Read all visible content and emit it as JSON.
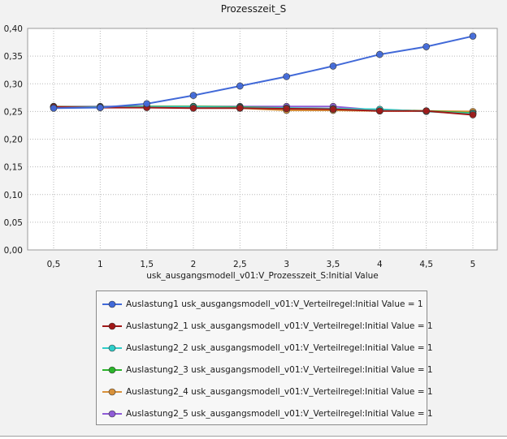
{
  "chart_data": {
    "type": "line",
    "title": "Prozesszeit_S",
    "xlabel": "usk_ausgangsmodell_v01:V_Prozesszeit_S:Initial Value",
    "ylabel": "",
    "x": [
      0.5,
      1,
      1.5,
      2,
      2.5,
      3,
      3.5,
      4,
      4.5,
      5
    ],
    "x_tick_labels": [
      "0,5",
      "1",
      "1,5",
      "2",
      "2,5",
      "3",
      "3,5",
      "4",
      "4,5",
      "5"
    ],
    "y_tick_labels": [
      "0,00",
      "0,05",
      "0,10",
      "0,15",
      "0,20",
      "0,25",
      "0,30",
      "0,35",
      "0,40"
    ],
    "ylim": [
      0,
      0.4
    ],
    "grid": true,
    "legend_position": "bottom",
    "series": [
      {
        "name": "Auslastung1 usk_ausgangsmodell_v01:V_Verteilregel:Initial Value = 1",
        "color": "#4169d8",
        "values": [
          0.256,
          0.257,
          0.264,
          0.279,
          0.296,
          0.313,
          0.332,
          0.353,
          0.367,
          0.386
        ]
      },
      {
        "name": "Auslastung2_1 usk_ausgangsmodell_v01:V_Verteilregel:Initial Value = 1",
        "color": "#a01818",
        "values": [
          0.258,
          0.257,
          0.257,
          0.256,
          0.256,
          0.255,
          0.254,
          0.251,
          0.251,
          0.244
        ]
      },
      {
        "name": "Auslastung2_2 usk_ausgangsmodell_v01:V_Verteilregel:Initial Value = 1",
        "color": "#2fcdc8",
        "values": [
          0.258,
          0.258,
          0.258,
          0.258,
          0.257,
          0.256,
          0.255,
          0.254,
          0.25,
          0.246
        ]
      },
      {
        "name": "Auslastung2_3 usk_ausgangsmodell_v01:V_Verteilregel:Initial Value = 1",
        "color": "#2bb42b",
        "values": [
          0.258,
          0.258,
          0.259,
          0.259,
          0.258,
          0.256,
          0.255,
          0.253,
          0.251,
          0.247
        ]
      },
      {
        "name": "Auslastung2_4 usk_ausgangsmodell_v01:V_Verteilregel:Initial Value = 1",
        "color": "#d8913a",
        "values": [
          0.259,
          0.258,
          0.258,
          0.258,
          0.256,
          0.252,
          0.252,
          0.251,
          0.251,
          0.25
        ]
      },
      {
        "name": "Auslastung2_5 usk_ausgangsmodell_v01:V_Verteilregel:Initial Value = 1",
        "color": "#8f5bd6",
        "values": [
          0.259,
          0.259,
          0.259,
          0.259,
          0.259,
          0.259,
          0.259,
          0.252,
          0.251,
          0.246
        ]
      }
    ]
  }
}
